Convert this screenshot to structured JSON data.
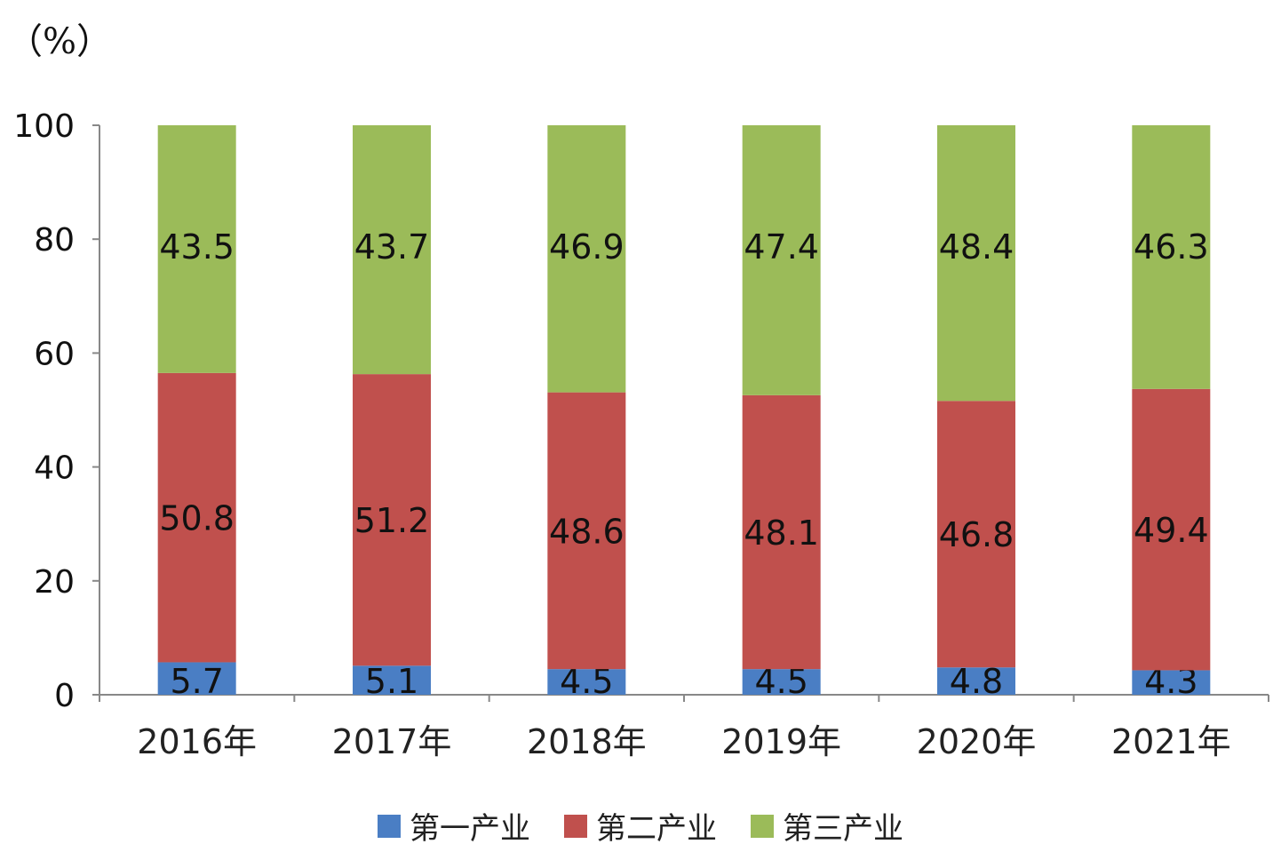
{
  "chart_data": {
    "type": "bar",
    "stacked": true,
    "unit_label": "（%）",
    "categories": [
      "2016年",
      "2017年",
      "2018年",
      "2019年",
      "2020年",
      "2021年"
    ],
    "series": [
      {
        "name": "第一产业",
        "color": "#4a7ec4",
        "values": [
          5.7,
          5.1,
          4.5,
          4.5,
          4.8,
          4.3
        ]
      },
      {
        "name": "第二产业",
        "color": "#c0504d",
        "values": [
          50.8,
          51.2,
          48.6,
          48.1,
          46.8,
          49.4
        ]
      },
      {
        "name": "第三产业",
        "color": "#9bbb59",
        "values": [
          43.5,
          43.7,
          46.9,
          47.4,
          48.4,
          46.3
        ]
      }
    ],
    "ylim": [
      0,
      100
    ],
    "yticks": [
      "0",
      "20",
      "40",
      "60",
      "80",
      "100"
    ],
    "grid": false,
    "legend_position": "bottom"
  }
}
